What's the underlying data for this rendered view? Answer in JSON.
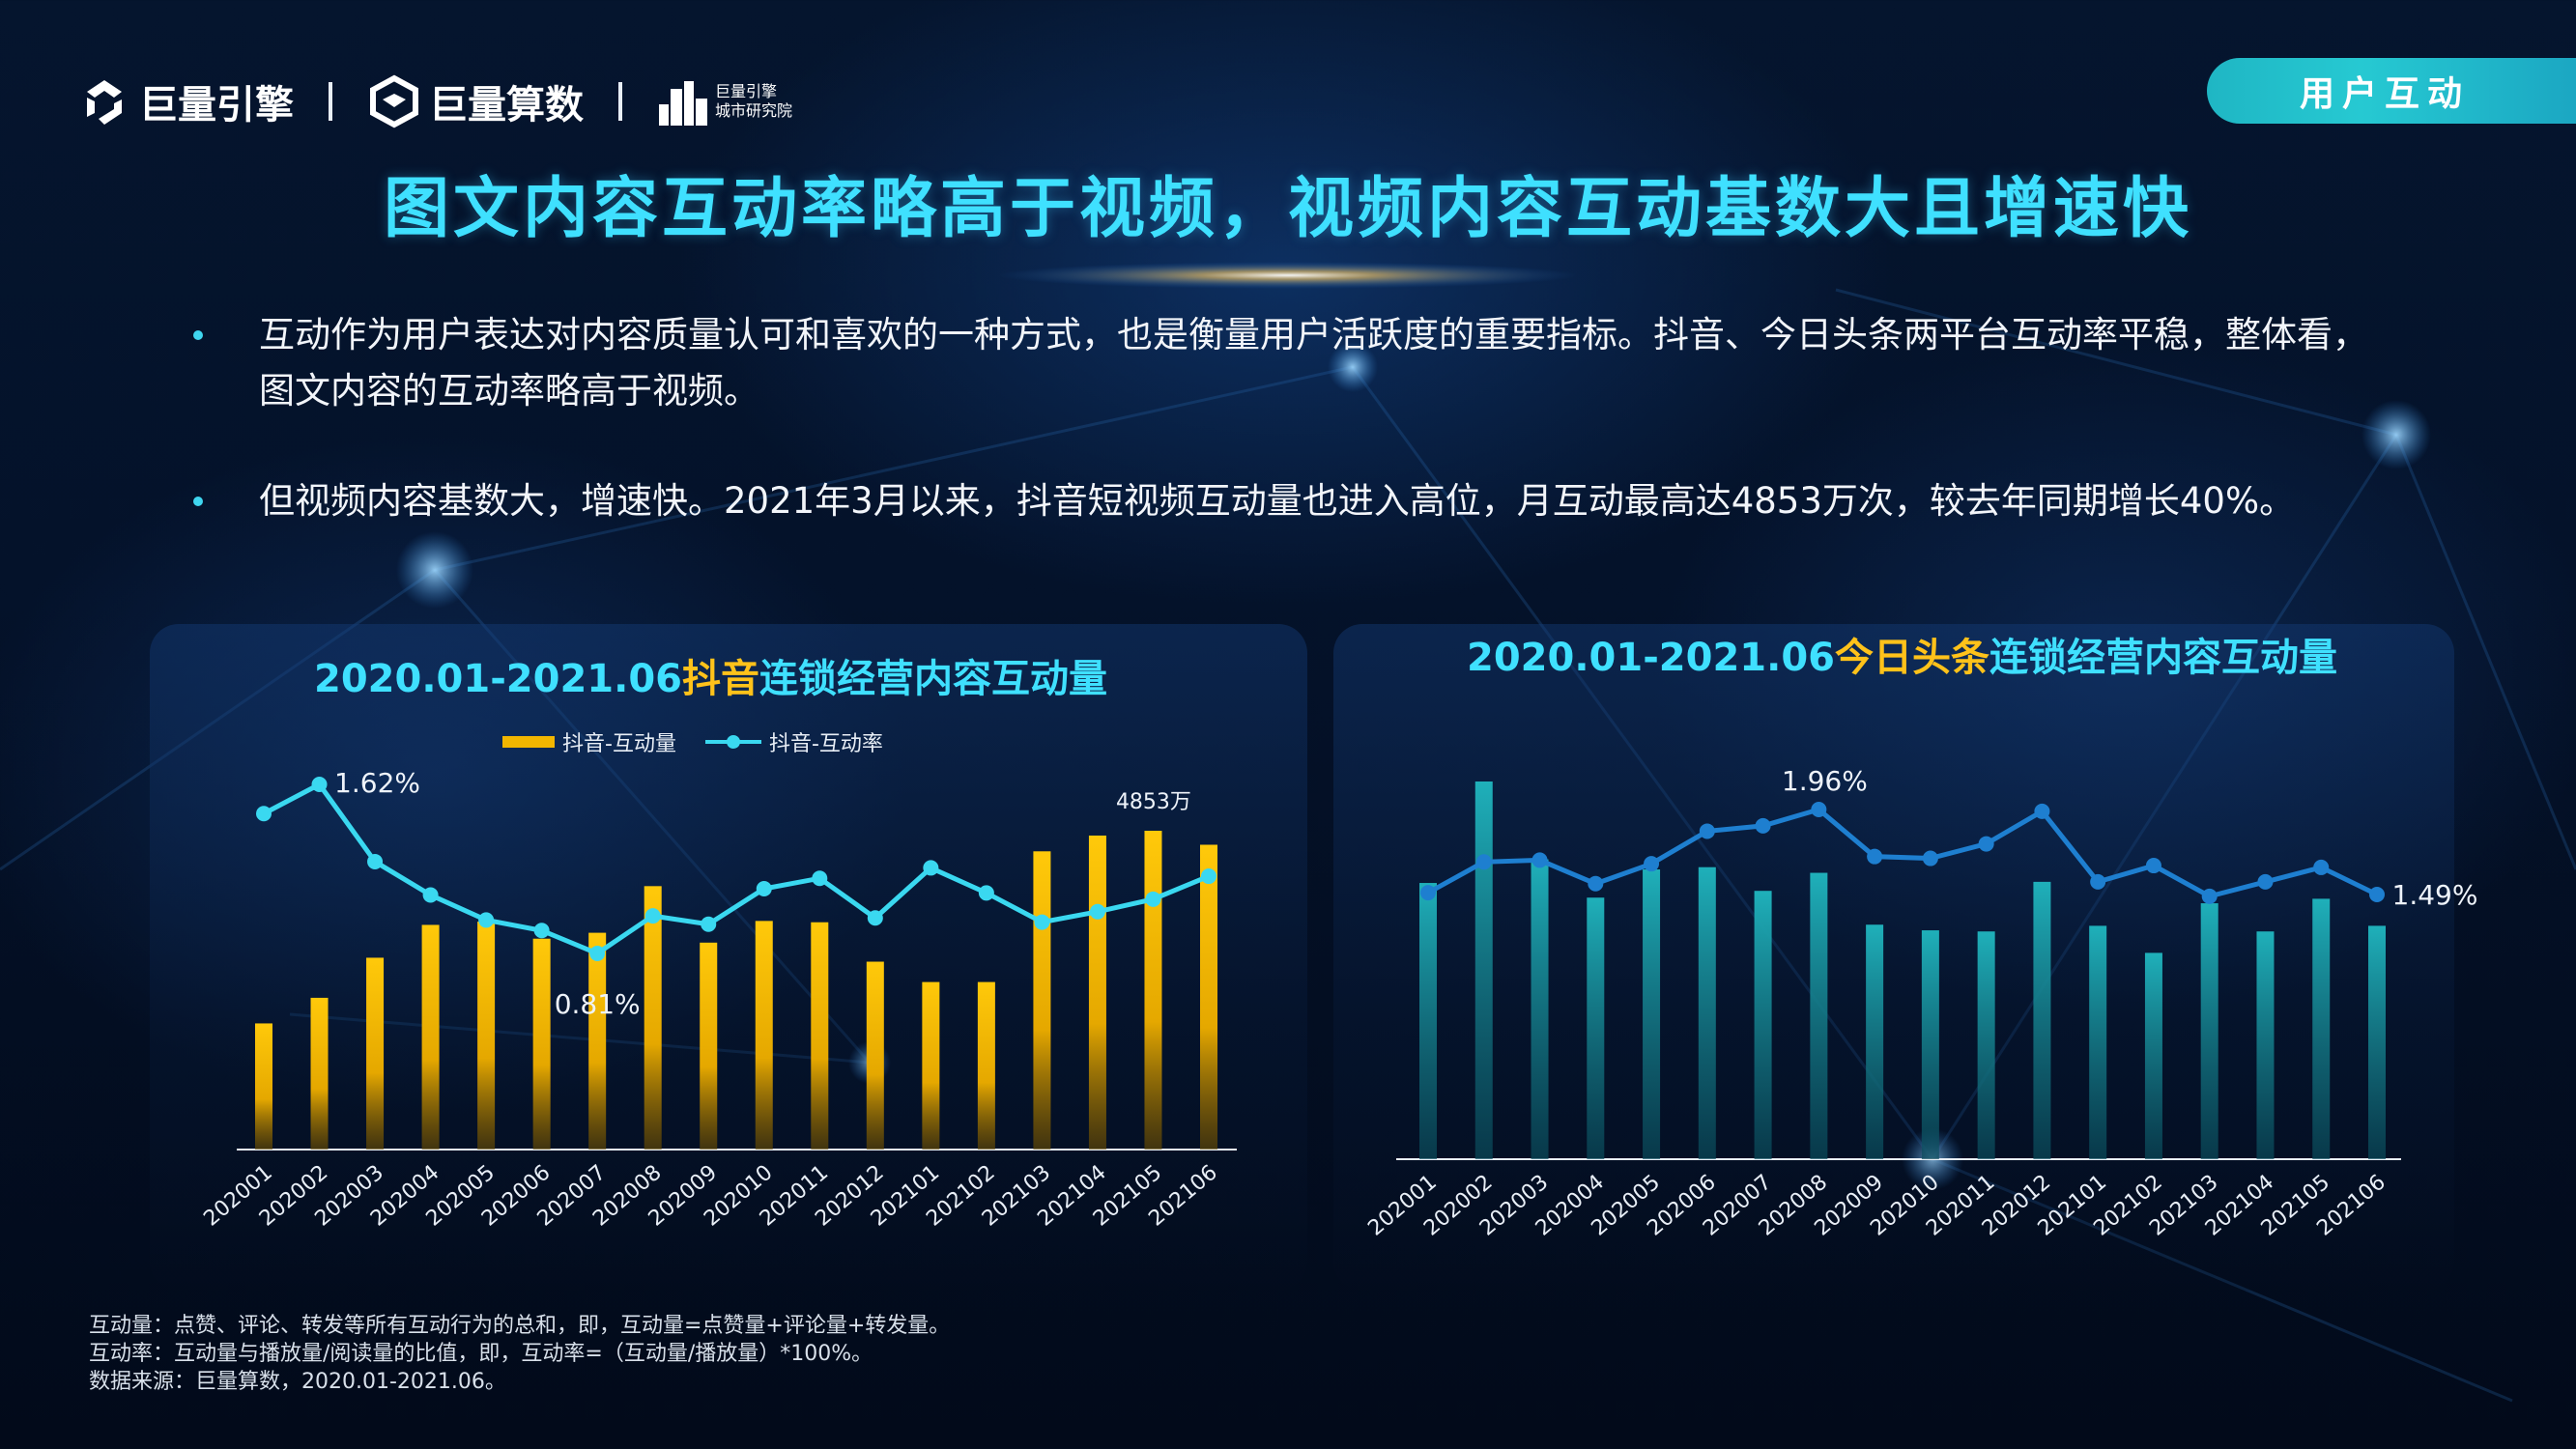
{
  "header": {
    "logo1": "巨量引擎",
    "logo2": "巨量算数",
    "logo3_line1": "巨量引擎",
    "logo3_line2": "城市研究院",
    "tag": "用户互动"
  },
  "title": "图文内容互动率略高于视频，视频内容互动基数大且增速快",
  "bullets": [
    "互动作为用户表达对内容质量认可和喜欢的一种方式，也是衡量用户活跃度的重要指标。抖音、今日头条两平台互动率平稳，整体看，图文内容的互动率略高于视频。",
    "但视频内容基数大，增速快。2021年3月以来，抖音短视频互动量也进入高位，月互动最高达4853万次，较去年同期增长40%。"
  ],
  "footnotes": [
    "互动量：点赞、评论、转发等所有互动行为的总和，即，互动量=点赞量+评论量+转发量。",
    "互动率：互动量与播放量/阅读量的比值，即，互动率=（互动量/播放量）*100%。",
    "数据来源：巨量算数，2020.01-2021.06。"
  ],
  "chart_titles": {
    "left": {
      "p1": "2020.01-2021.06",
      "p2": "抖音",
      "p3": "连锁经营内容互动量"
    },
    "right": {
      "p1": "2020.01-2021.06",
      "p2": "今日头条",
      "p3": "连锁经营内容互动量"
    }
  },
  "chart_data": [
    {
      "type": "bar",
      "categories": [
        "202001",
        "202002",
        "202003",
        "202004",
        "202005",
        "202006",
        "202007",
        "202008",
        "202009",
        "202010",
        "202011",
        "202012",
        "202101",
        "202102",
        "202103",
        "202104",
        "202105",
        "202106"
      ],
      "series": [
        {
          "name": "抖音-互动量",
          "type": "bar",
          "color": "#f2b600",
          "unit": "万",
          "values": [
            1920,
            2310,
            2920,
            3420,
            3470,
            3210,
            3300,
            4010,
            3150,
            3480,
            3460,
            2860,
            2550,
            2550,
            4540,
            4780,
            4853,
            4640
          ]
        },
        {
          "name": "抖音-互动率",
          "type": "line",
          "color": "#3ad8f0",
          "unit": "%",
          "values": [
            1.48,
            1.62,
            1.25,
            1.09,
            0.97,
            0.92,
            0.81,
            0.99,
            0.95,
            1.12,
            1.17,
            0.98,
            1.22,
            1.1,
            0.96,
            1.01,
            1.07,
            1.18
          ]
        }
      ],
      "labels": {
        "rate_max": "1.62%",
        "rate_min": "0.81%",
        "volume_max": "4853万"
      },
      "legend": "top-center",
      "grid": false
    },
    {
      "type": "bar",
      "categories": [
        "202001",
        "202002",
        "202003",
        "202004",
        "202005",
        "202006",
        "202007",
        "202008",
        "202009",
        "202010",
        "202011",
        "202012",
        "202101",
        "202102",
        "202103",
        "202104",
        "202105",
        "202106"
      ],
      "series": [
        {
          "type": "bar",
          "color": "#1ea8b2",
          "values": [
            2.45,
            3.35,
            2.66,
            2.32,
            2.57,
            2.59,
            2.38,
            2.54,
            2.08,
            2.03,
            2.02,
            2.46,
            2.07,
            1.83,
            2.27,
            2.02,
            2.31,
            2.07
          ]
        },
        {
          "type": "line",
          "color": "#1e7fd0",
          "unit": "%",
          "values": [
            1.5,
            1.67,
            1.68,
            1.55,
            1.66,
            1.84,
            1.87,
            1.96,
            1.7,
            1.69,
            1.77,
            1.95,
            1.56,
            1.65,
            1.48,
            1.56,
            1.64,
            1.49
          ]
        }
      ],
      "labels": {
        "rate_max": "1.96%",
        "rate_last": "1.49%"
      },
      "grid": false
    }
  ]
}
